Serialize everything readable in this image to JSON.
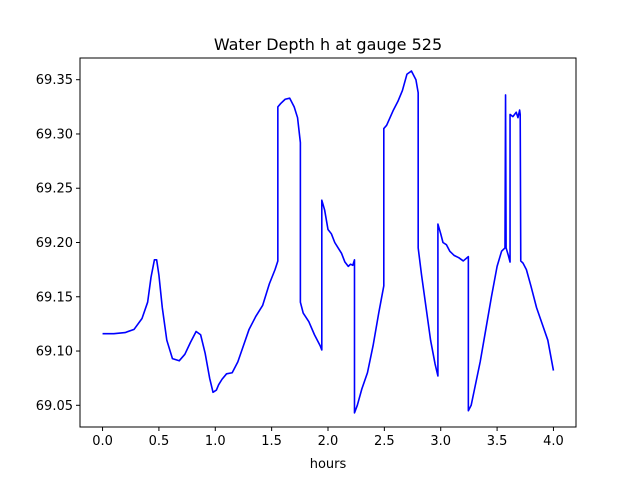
{
  "chart_data": {
    "type": "line",
    "title": "Water Depth h at gauge 525",
    "xlabel": "hours",
    "ylabel": "",
    "xlim": [
      -0.2,
      4.2
    ],
    "ylim": [
      69.03,
      69.37
    ],
    "xticks": [
      0.0,
      0.5,
      1.0,
      1.5,
      2.0,
      2.5,
      3.0,
      3.5,
      4.0
    ],
    "xtick_labels": [
      "0.0",
      "0.5",
      "1.0",
      "1.5",
      "2.0",
      "2.5",
      "3.0",
      "3.5",
      "4.0"
    ],
    "yticks": [
      69.05,
      69.1,
      69.15,
      69.2,
      69.25,
      69.3,
      69.35
    ],
    "ytick_labels": [
      "69.05",
      "69.10",
      "69.15",
      "69.20",
      "69.25",
      "69.30",
      "69.35"
    ],
    "grid": false,
    "series": [
      {
        "color": "#0000ff",
        "x": [
          0.0,
          0.1,
          0.2,
          0.28,
          0.35,
          0.4,
          0.43,
          0.46,
          0.48,
          0.5,
          0.53,
          0.57,
          0.62,
          0.68,
          0.73,
          0.78,
          0.83,
          0.87,
          0.91,
          0.95,
          0.98,
          1.01,
          1.03,
          1.06,
          1.1,
          1.15,
          1.2,
          1.25,
          1.3,
          1.36,
          1.42,
          1.48,
          1.53,
          1.555,
          1.555,
          1.58,
          1.62,
          1.66,
          1.7,
          1.73,
          1.755,
          1.755,
          1.78,
          1.83,
          1.88,
          1.93,
          1.945,
          1.945,
          1.97,
          2.0,
          2.03,
          2.06,
          2.09,
          2.12,
          2.15,
          2.18,
          2.2,
          2.22,
          2.235,
          2.235,
          2.26,
          2.3,
          2.35,
          2.4,
          2.45,
          2.495,
          2.495,
          2.52,
          2.55,
          2.58,
          2.62,
          2.66,
          2.7,
          2.74,
          2.78,
          2.8,
          2.8,
          2.83,
          2.87,
          2.91,
          2.95,
          2.975,
          2.975,
          3.0,
          3.02,
          3.05,
          3.08,
          3.12,
          3.16,
          3.2,
          3.245,
          3.245,
          3.27,
          3.3,
          3.35,
          3.4,
          3.45,
          3.5,
          3.54,
          3.57,
          3.575,
          3.58,
          3.6,
          3.615,
          3.615,
          3.64,
          3.67,
          3.685,
          3.7,
          3.705,
          3.71,
          3.73,
          3.76,
          3.8,
          3.85,
          3.9,
          3.95,
          4.0
        ],
        "y": [
          69.116,
          69.116,
          69.117,
          69.12,
          69.13,
          69.145,
          69.168,
          69.184,
          69.184,
          69.17,
          69.14,
          69.11,
          69.093,
          69.091,
          69.097,
          69.108,
          69.118,
          69.115,
          69.098,
          69.075,
          69.062,
          69.064,
          69.069,
          69.074,
          69.079,
          69.08,
          69.09,
          69.105,
          69.12,
          69.132,
          69.142,
          69.162,
          69.175,
          69.183,
          69.325,
          69.328,
          69.332,
          69.333,
          69.325,
          69.315,
          69.292,
          69.145,
          69.135,
          69.127,
          69.115,
          69.105,
          69.101,
          69.239,
          69.23,
          69.212,
          69.208,
          69.2,
          69.195,
          69.19,
          69.182,
          69.178,
          69.18,
          69.179,
          69.184,
          69.043,
          69.05,
          69.065,
          69.08,
          69.105,
          69.135,
          69.16,
          69.305,
          69.308,
          69.315,
          69.322,
          69.33,
          69.34,
          69.355,
          69.358,
          69.35,
          69.338,
          69.195,
          69.17,
          69.14,
          69.11,
          69.088,
          69.077,
          69.217,
          69.208,
          69.2,
          69.198,
          69.192,
          69.188,
          69.186,
          69.183,
          69.187,
          69.045,
          69.05,
          69.065,
          69.09,
          69.12,
          69.15,
          69.178,
          69.192,
          69.195,
          69.336,
          69.195,
          69.188,
          69.182,
          69.318,
          69.316,
          69.32,
          69.315,
          69.322,
          69.318,
          69.183,
          69.181,
          69.175,
          69.16,
          69.14,
          69.125,
          69.11,
          69.082
        ]
      }
    ]
  }
}
